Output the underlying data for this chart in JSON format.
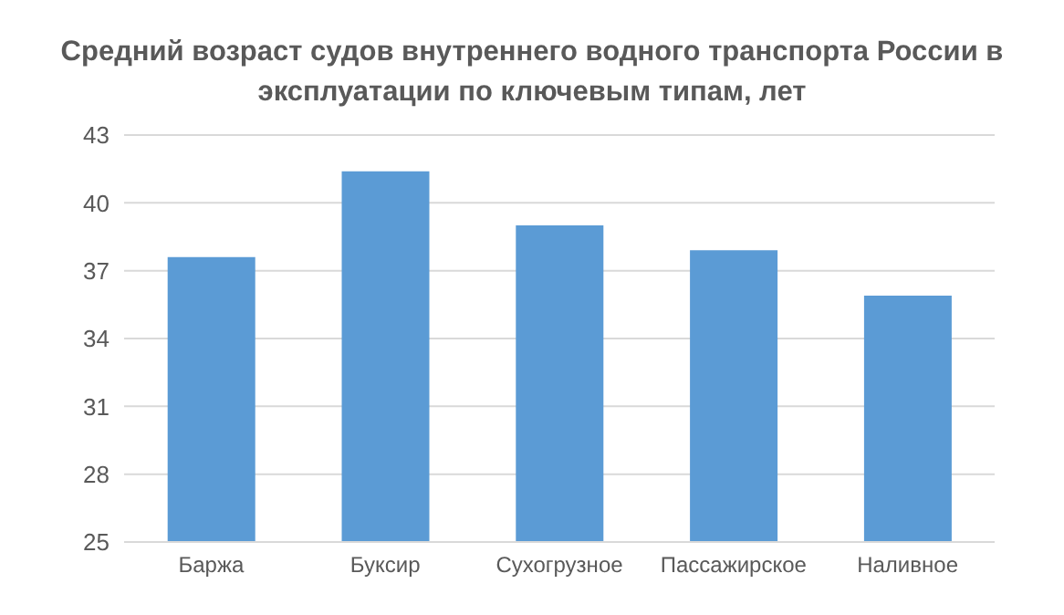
{
  "chart_data": {
    "type": "bar",
    "title": "Средний возраст судов внутреннего водного транспорта России в эксплуатации по ключевым типам, лет",
    "categories": [
      "Баржа",
      "Буксир",
      "Сухогрузное",
      "Пассажирское",
      "Наливное"
    ],
    "values": [
      37.6,
      41.4,
      39.0,
      37.9,
      35.9
    ],
    "color": "#5b9bd5",
    "ylim": [
      25,
      43
    ],
    "yticks": [
      25,
      28,
      31,
      34,
      37,
      40,
      43
    ],
    "grid": "y"
  }
}
